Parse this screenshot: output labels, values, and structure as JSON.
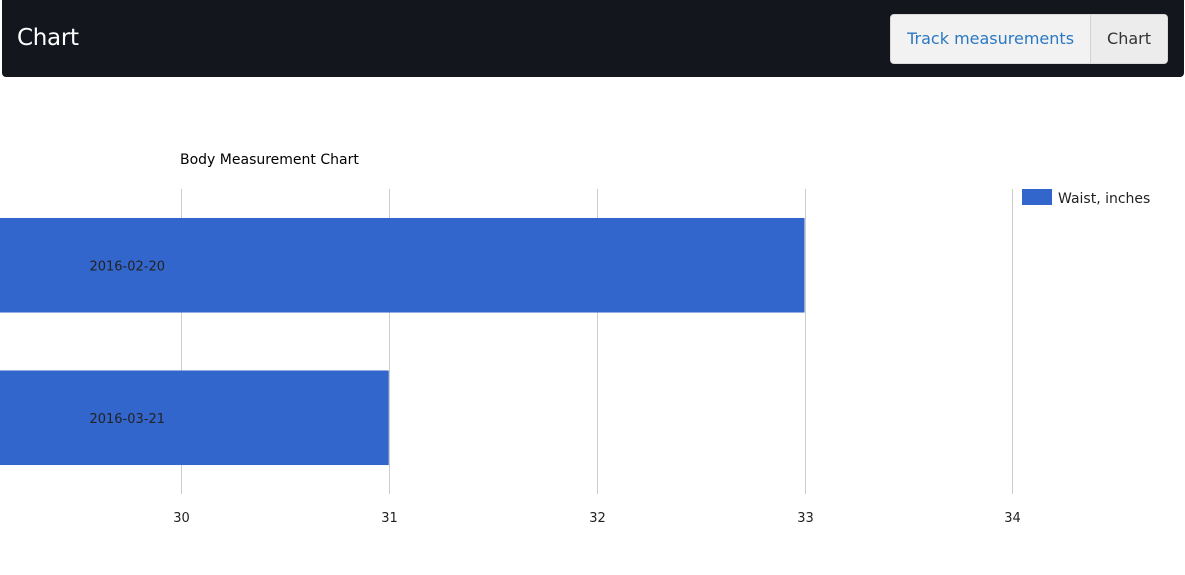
{
  "navbar": {
    "brand": "Chart",
    "links": [
      {
        "label": "Track measurements",
        "active": false
      },
      {
        "label": "Chart",
        "active": true
      }
    ]
  },
  "colors": {
    "navbar_bg": "#14161e",
    "bar": "#3366cc",
    "link": "#2a78c2"
  },
  "chart_data": {
    "type": "bar",
    "orientation": "horizontal",
    "title": "Body Measurement Chart",
    "categories": [
      "2016-02-20",
      "2016-03-21"
    ],
    "series": [
      {
        "name": "Waist, inches",
        "values": [
          33,
          31
        ],
        "color": "#3366cc"
      }
    ],
    "xticks": [
      30,
      31,
      32,
      33,
      34
    ],
    "xlim": [
      29.13,
      34.83
    ],
    "grid": true,
    "legend_position": "right"
  }
}
